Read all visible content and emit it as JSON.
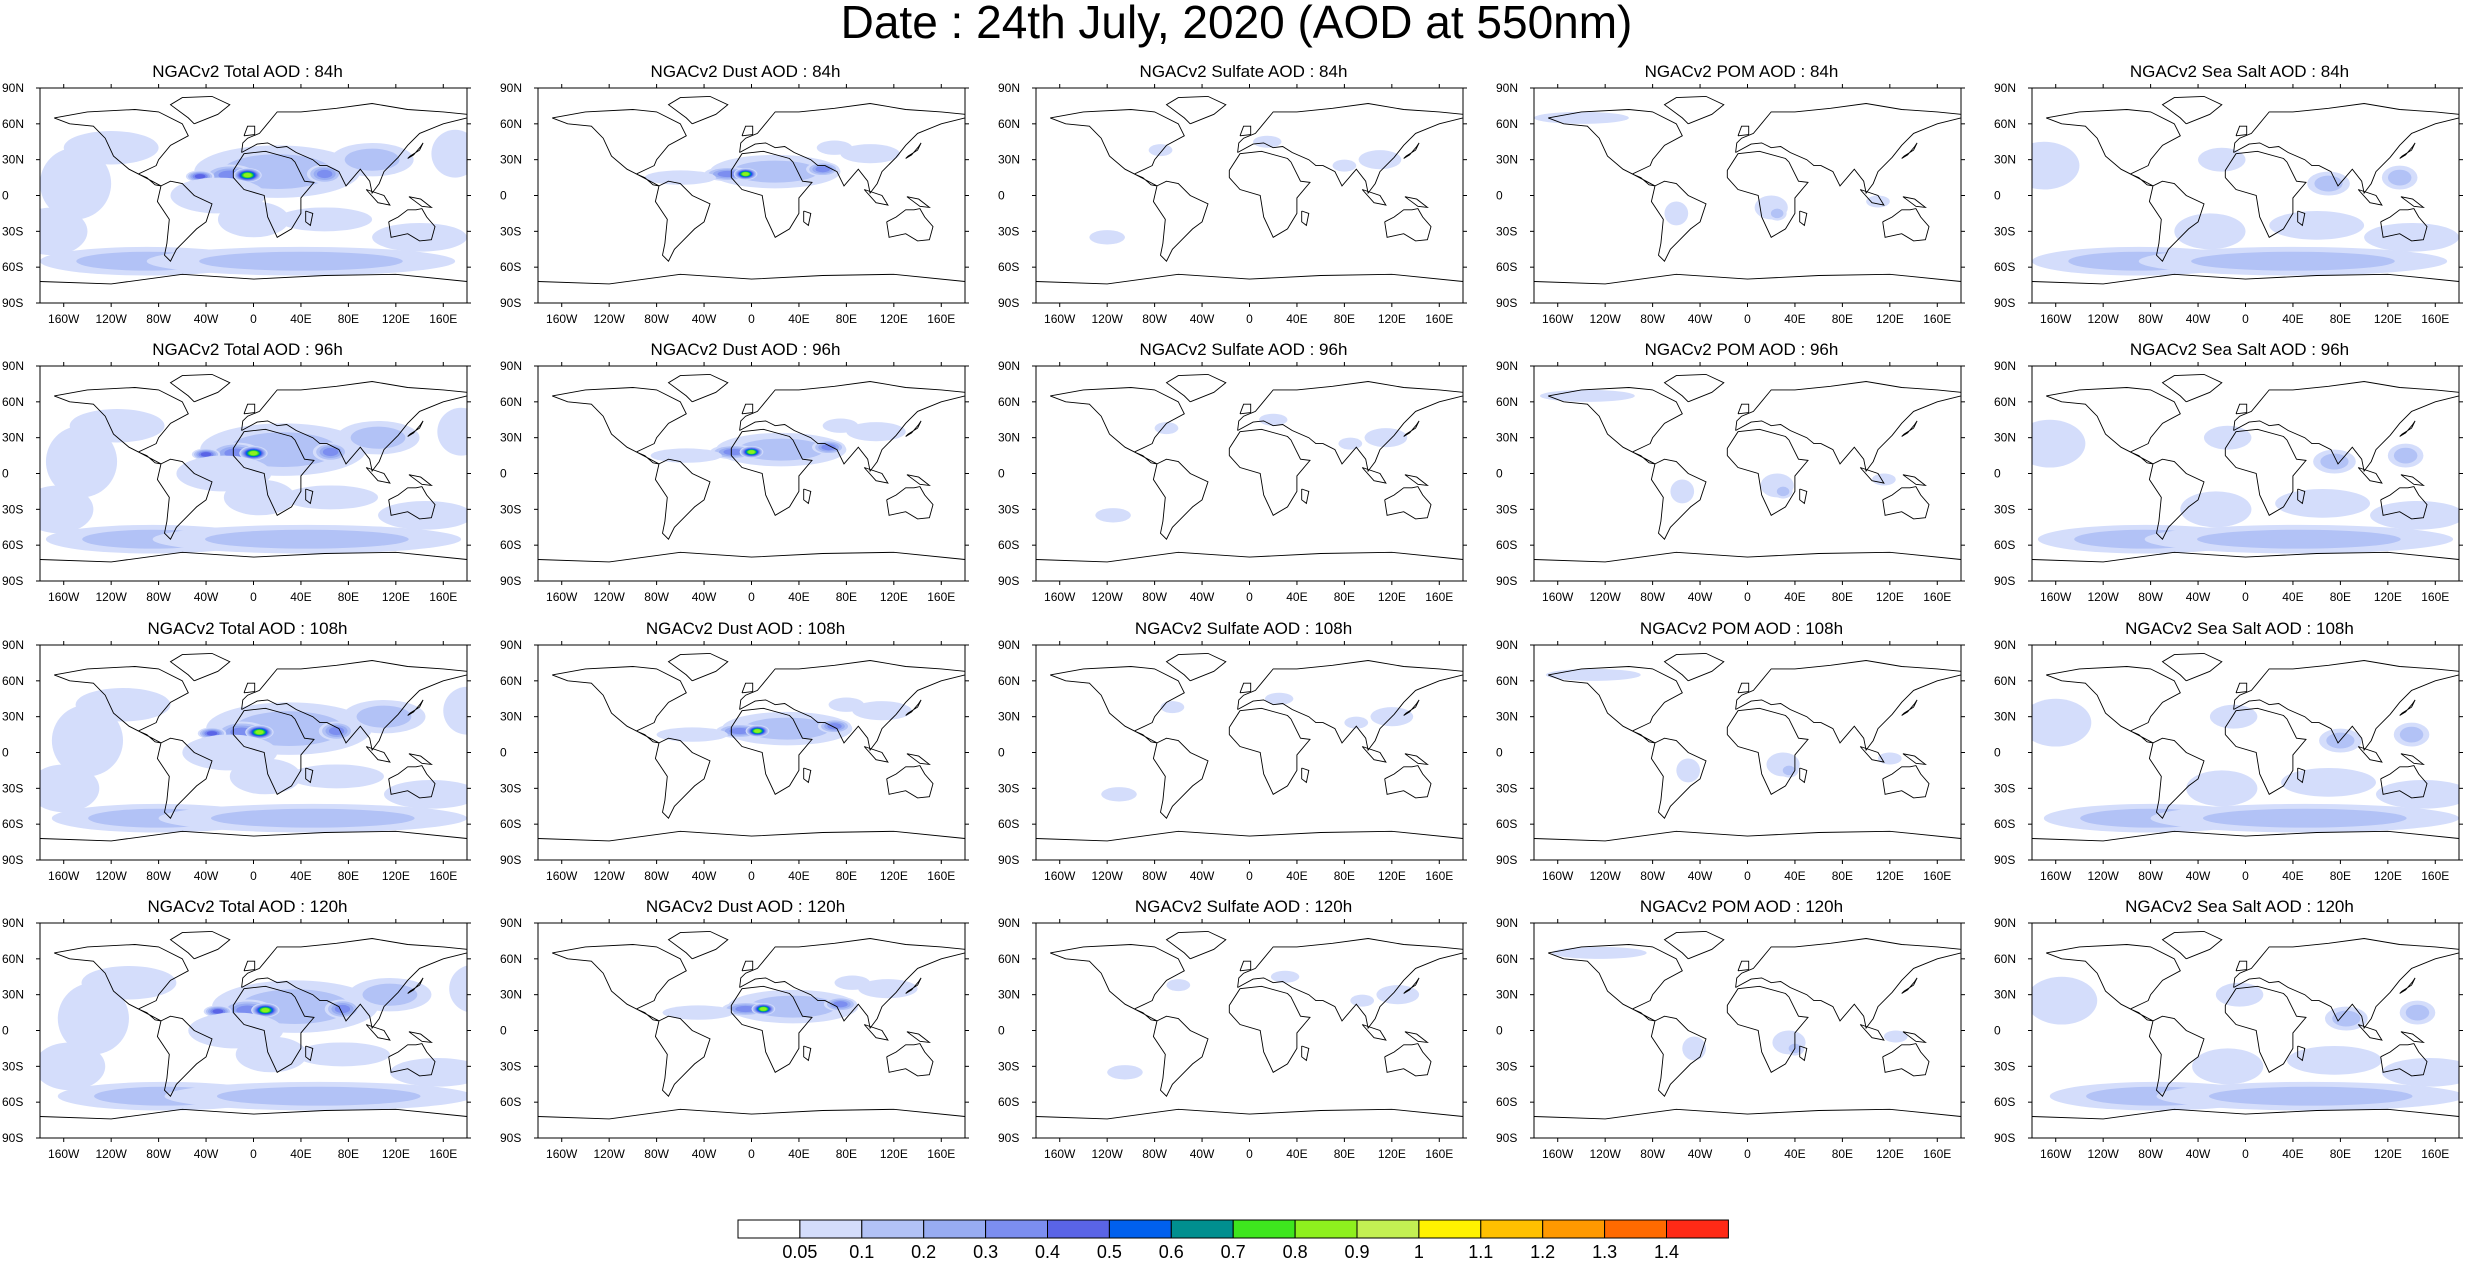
{
  "title": "Date : 24th July, 2020 (AOD at 550nm)",
  "lat_labels": [
    "90N",
    "60N",
    "30N",
    "0",
    "30S",
    "60S",
    "90S"
  ],
  "lon_labels": [
    "160W",
    "120W",
    "80W",
    "40W",
    "0",
    "40E",
    "80E",
    "120E",
    "160E"
  ],
  "panel_rows": [
    [
      "NGACv2 Total AOD : 84h",
      "NGACv2 Dust AOD : 84h",
      "NGACv2 Sulfate AOD : 84h",
      "NGACv2 POM AOD : 84h",
      "NGACv2 Sea Salt AOD : 84h"
    ],
    [
      "NGACv2 Total AOD : 96h",
      "NGACv2 Dust AOD : 96h",
      "NGACv2 Sulfate AOD : 96h",
      "NGACv2 POM AOD : 96h",
      "NGACv2 Sea Salt AOD : 96h"
    ],
    [
      "NGACv2 Total AOD : 108h",
      "NGACv2 Dust AOD : 108h",
      "NGACv2 Sulfate AOD : 108h",
      "NGACv2 POM AOD : 108h",
      "NGACv2 Sea Salt AOD : 108h"
    ],
    [
      "NGACv2 Total AOD : 120h",
      "NGACv2 Dust AOD : 120h",
      "NGACv2 Sulfate AOD : 120h",
      "NGACv2 POM AOD : 120h",
      "NGACv2 Sea Salt  AOD : 120h"
    ]
  ],
  "colorbar": {
    "levels": [
      "0.05",
      "0.1",
      "0.2",
      "0.3",
      "0.4",
      "0.5",
      "0.6",
      "0.7",
      "0.8",
      "0.9",
      "1",
      "1.1",
      "1.2",
      "1.3",
      "1.4"
    ],
    "colors": [
      "#ffffff",
      "#d4ddfb",
      "#b2c2f6",
      "#98acf2",
      "#7c8ef0",
      "#5a64e6",
      "#0060ee",
      "#008f8f",
      "#3ee61e",
      "#8ef01e",
      "#c3f053",
      "#fff200",
      "#ffc000",
      "#ff9900",
      "#ff6a00",
      "#ff2a16"
    ]
  },
  "colors": {
    "land_outline": "#000000",
    "aerosol_light": "#d4ddfb",
    "aerosol_mid": "#98acf2",
    "aerosol_high": "#5a64e6"
  }
}
